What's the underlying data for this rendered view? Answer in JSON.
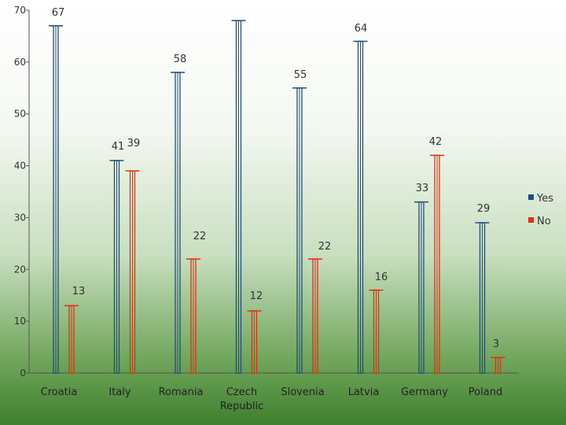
{
  "chart_data": {
    "type": "bar",
    "categories": [
      "Croatia",
      "Italy",
      "Romania",
      "Czech\nRepublic",
      "Slovenia",
      "Latvia",
      "Germany",
      "Poland"
    ],
    "series": [
      {
        "name": "Yes",
        "color": "#1f4e79",
        "values": [
          67,
          41,
          58,
          68,
          55,
          64,
          33,
          29
        ],
        "labels": [
          "67",
          "41",
          "58",
          "",
          "55",
          "64",
          "33",
          "29"
        ]
      },
      {
        "name": "No",
        "color": "#e03010",
        "values": [
          13,
          39,
          22,
          12,
          22,
          16,
          42,
          3
        ],
        "labels": [
          "13",
          "39",
          "22",
          "12",
          "22",
          "16",
          "42",
          "3"
        ]
      }
    ],
    "ylim": [
      0,
      70
    ],
    "yticks": [
      "0",
      "10",
      "20",
      "30",
      "40",
      "50",
      "60",
      "70"
    ],
    "legend": "right",
    "title": "",
    "xlabel": "",
    "ylabel": ""
  }
}
